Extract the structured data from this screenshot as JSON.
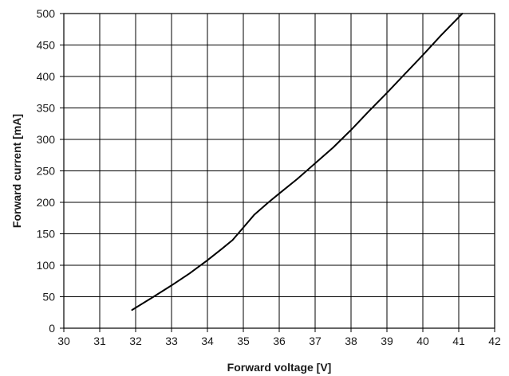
{
  "chart_data": {
    "type": "line",
    "title": "",
    "xlabel": "Forward voltage [V]",
    "ylabel": "Forward current [mA]",
    "xlim": [
      30,
      42
    ],
    "ylim": [
      0,
      500
    ],
    "x_ticks": [
      30,
      31,
      32,
      33,
      34,
      35,
      36,
      37,
      38,
      39,
      40,
      41,
      42
    ],
    "y_ticks": [
      0,
      50,
      100,
      150,
      200,
      250,
      300,
      350,
      400,
      450,
      500
    ],
    "grid": true,
    "legend": "none",
    "series": [
      {
        "color": "#000000",
        "x": [
          31.9,
          32.5,
          33.0,
          33.5,
          34.0,
          34.4,
          34.7,
          35.0,
          35.3,
          35.7,
          36.0,
          36.5,
          37.0,
          37.5,
          38.0,
          38.5,
          39.0,
          39.5,
          40.0,
          40.5,
          41.1
        ],
        "y": [
          29,
          50,
          68,
          87,
          108,
          126,
          140,
          160,
          180,
          200,
          214,
          237,
          262,
          287,
          315,
          345,
          374,
          404,
          434,
          465,
          500
        ]
      }
    ]
  }
}
